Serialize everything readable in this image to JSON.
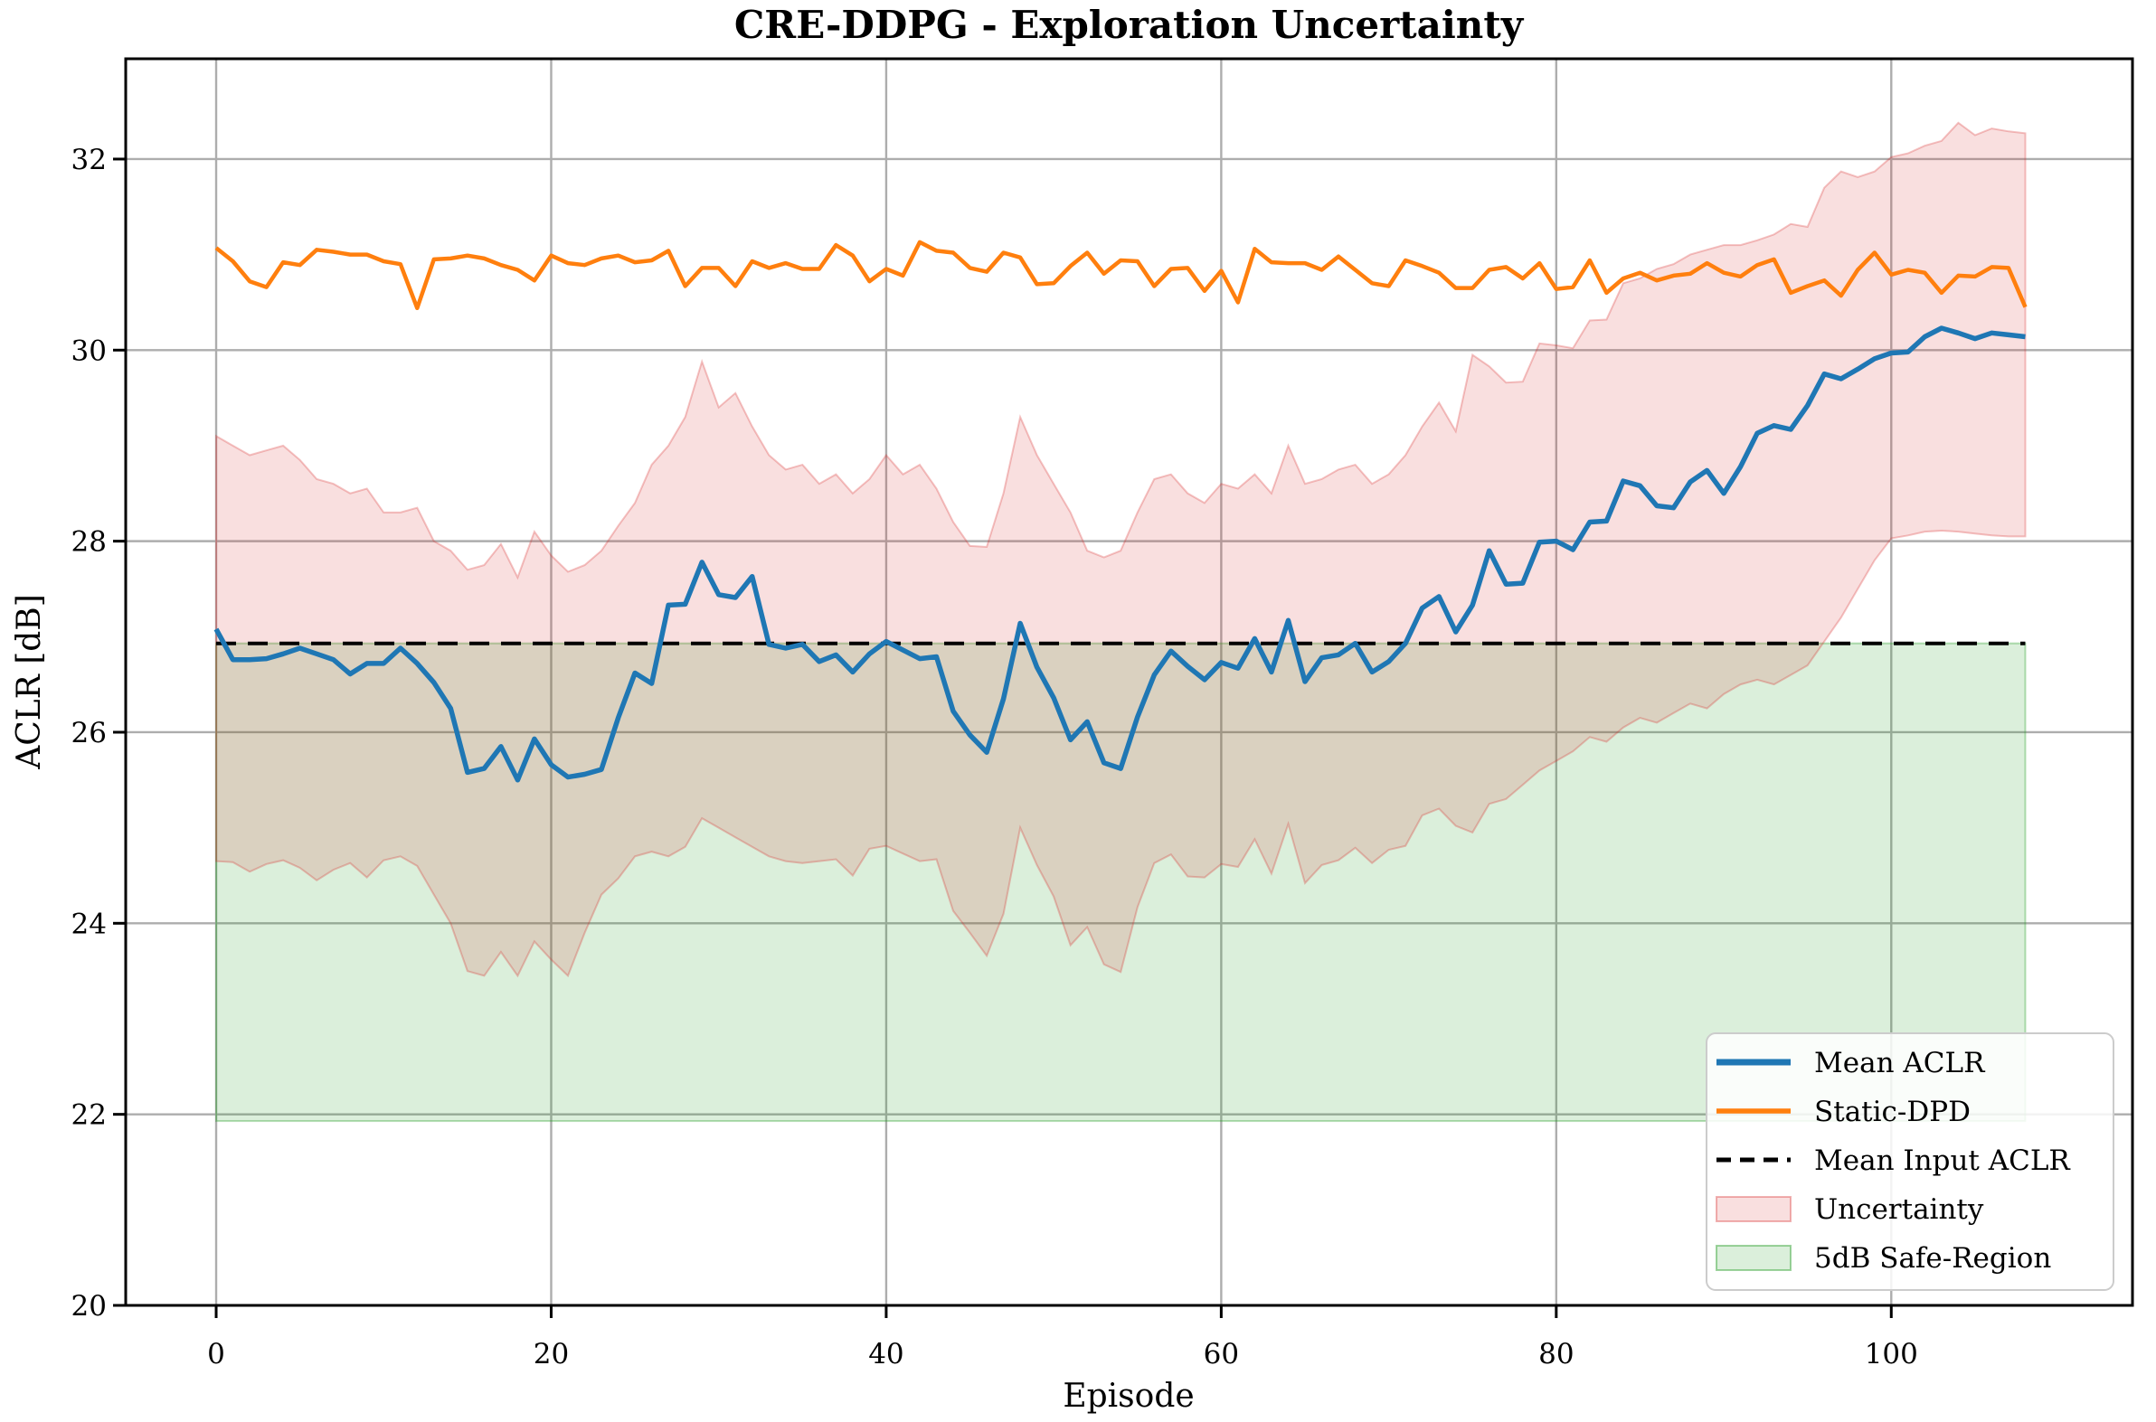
{
  "title": "CRE-DDPG - Exploration Uncertainty",
  "colors": {
    "mean_aclr": "#1f77b4",
    "static_dpd": "#ff7f0e",
    "mean_input_aclr": "#000000",
    "uncertainty_fill": "rgba(214,39,40,0.15)",
    "uncertainty_edge": "rgba(214,39,40,0.28)",
    "safe_region_fill": "rgba(44,160,44,0.17)",
    "safe_region_edge": "rgba(44,160,44,0.35)",
    "grid": "#adadad",
    "spine": "#000000",
    "legend_border": "#cccccc",
    "legend_bg": "rgba(255,255,255,0.85)"
  },
  "chart_data": {
    "type": "line",
    "title": "CRE-DDPG - Exploration Uncertainty",
    "xlabel": "Episode",
    "ylabel": "ACLR [dB]",
    "xlim": [
      -5.4,
      114.4
    ],
    "ylim": [
      20,
      33.05
    ],
    "x_ticks": [
      0,
      20,
      40,
      60,
      80,
      100
    ],
    "y_ticks": [
      20,
      22,
      24,
      26,
      28,
      30,
      32
    ],
    "grid": true,
    "legend_position": "lower right",
    "legend": [
      "Mean ACLR",
      "Static-DPD",
      "Mean Input ACLR",
      "Uncertainty",
      "5dB Safe-Region"
    ],
    "episode_start": 0,
    "n_points": 109,
    "mean_input_aclr": 26.93,
    "safe_region": {
      "y_min": 21.93,
      "y_max": 26.93,
      "x_min": 0,
      "x_max": 108
    },
    "series": [
      {
        "name": "Mean ACLR",
        "values": [
          27.08,
          26.76,
          26.76,
          26.77,
          26.82,
          26.88,
          26.82,
          26.76,
          26.61,
          26.72,
          26.72,
          26.88,
          26.72,
          26.52,
          26.25,
          25.58,
          25.62,
          25.85,
          25.5,
          25.93,
          25.66,
          25.53,
          25.56,
          25.61,
          26.15,
          26.62,
          26.51,
          27.33,
          27.34,
          27.78,
          27.44,
          27.41,
          27.63,
          26.92,
          26.88,
          26.92,
          26.74,
          26.81,
          26.63,
          26.82,
          26.95,
          26.86,
          26.77,
          26.79,
          26.22,
          25.97,
          25.79,
          26.35,
          27.14,
          26.68,
          26.36,
          25.92,
          26.11,
          25.68,
          25.62,
          26.16,
          26.6,
          26.85,
          26.69,
          26.55,
          26.73,
          26.67,
          26.98,
          26.63,
          27.17,
          26.53,
          26.78,
          26.81,
          26.93,
          26.63,
          26.74,
          26.93,
          27.3,
          27.42,
          27.05,
          27.33,
          27.9,
          27.55,
          27.56,
          27.99,
          28.0,
          27.91,
          28.2,
          28.21,
          28.63,
          28.58,
          28.37,
          28.35,
          28.62,
          28.74,
          28.5,
          28.78,
          29.13,
          29.21,
          29.17,
          29.42,
          29.75,
          29.7,
          29.8,
          29.91,
          29.97,
          29.98,
          30.14,
          30.23,
          30.18,
          30.12,
          30.18,
          30.16,
          30.14
        ]
      },
      {
        "name": "Static-DPD",
        "values": [
          31.07,
          30.93,
          30.72,
          30.66,
          30.92,
          30.89,
          31.05,
          31.03,
          31.0,
          31.0,
          30.93,
          30.9,
          30.44,
          30.95,
          30.96,
          30.99,
          30.96,
          30.89,
          30.84,
          30.73,
          30.99,
          30.91,
          30.89,
          30.96,
          30.99,
          30.92,
          30.94,
          31.04,
          30.67,
          30.86,
          30.86,
          30.67,
          30.93,
          30.86,
          30.91,
          30.85,
          30.85,
          31.1,
          30.99,
          30.72,
          30.85,
          30.78,
          31.13,
          31.04,
          31.02,
          30.86,
          30.82,
          31.02,
          30.97,
          30.69,
          30.7,
          30.88,
          31.02,
          30.8,
          30.94,
          30.93,
          30.67,
          30.85,
          30.86,
          30.62,
          30.83,
          30.5,
          31.06,
          30.92,
          30.91,
          30.91,
          30.84,
          30.98,
          30.84,
          30.7,
          30.67,
          30.94,
          30.88,
          30.81,
          30.65,
          30.65,
          30.84,
          30.87,
          30.75,
          30.91,
          30.64,
          30.66,
          30.94,
          30.6,
          30.75,
          30.81,
          30.73,
          30.78,
          30.8,
          30.91,
          30.81,
          30.77,
          30.89,
          30.95,
          30.6,
          30.67,
          30.73,
          30.57,
          30.84,
          31.02,
          30.79,
          30.84,
          30.81,
          30.6,
          30.78,
          30.77,
          30.87,
          30.86,
          30.45
        ]
      },
      {
        "name": "Uncertainty",
        "type": "band",
        "upper": [
          29.1,
          29.0,
          28.9,
          28.95,
          29.0,
          28.85,
          28.65,
          28.6,
          28.5,
          28.55,
          28.3,
          28.3,
          28.35,
          28.0,
          27.9,
          27.7,
          27.75,
          27.97,
          27.62,
          28.1,
          27.85,
          27.68,
          27.75,
          27.9,
          28.16,
          28.4,
          28.8,
          29.0,
          29.3,
          29.88,
          29.4,
          29.55,
          29.2,
          28.9,
          28.75,
          28.8,
          28.6,
          28.7,
          28.5,
          28.65,
          28.9,
          28.7,
          28.8,
          28.55,
          28.2,
          27.95,
          27.94,
          28.5,
          29.3,
          28.9,
          28.6,
          28.3,
          27.9,
          27.83,
          27.9,
          28.3,
          28.65,
          28.7,
          28.5,
          28.4,
          28.6,
          28.55,
          28.7,
          28.5,
          29.0,
          28.6,
          28.65,
          28.75,
          28.8,
          28.6,
          28.7,
          28.9,
          29.2,
          29.45,
          29.15,
          29.95,
          29.83,
          29.66,
          29.67,
          30.07,
          30.05,
          30.02,
          30.31,
          30.32,
          30.7,
          30.75,
          30.85,
          30.9,
          31.0,
          31.05,
          31.1,
          31.1,
          31.15,
          31.21,
          31.32,
          31.29,
          31.7,
          31.87,
          31.81,
          31.87,
          32.02,
          32.06,
          32.14,
          32.19,
          32.38,
          32.25,
          32.32,
          32.29,
          32.27
        ],
        "lower": [
          24.65,
          24.64,
          24.54,
          24.62,
          24.66,
          24.58,
          24.45,
          24.56,
          24.63,
          24.48,
          24.66,
          24.7,
          24.6,
          24.3,
          24.0,
          23.5,
          23.45,
          23.7,
          23.45,
          23.81,
          23.62,
          23.45,
          23.9,
          24.3,
          24.47,
          24.7,
          24.75,
          24.7,
          24.8,
          25.1,
          25.0,
          24.9,
          24.8,
          24.7,
          24.65,
          24.63,
          24.65,
          24.67,
          24.5,
          24.78,
          24.81,
          24.73,
          24.65,
          24.67,
          24.13,
          23.9,
          23.66,
          24.1,
          25.0,
          24.61,
          24.28,
          23.77,
          23.96,
          23.57,
          23.49,
          24.17,
          24.63,
          24.72,
          24.49,
          24.48,
          24.62,
          24.59,
          24.88,
          24.52,
          25.04,
          24.42,
          24.61,
          24.66,
          24.79,
          24.63,
          24.77,
          24.81,
          25.13,
          25.2,
          25.02,
          24.95,
          25.25,
          25.3,
          25.45,
          25.6,
          25.7,
          25.8,
          25.95,
          25.9,
          26.05,
          26.15,
          26.1,
          26.2,
          26.3,
          26.25,
          26.4,
          26.5,
          26.55,
          26.5,
          26.6,
          26.7,
          26.95,
          27.2,
          27.5,
          27.8,
          28.03,
          28.06,
          28.1,
          28.11,
          28.1,
          28.08,
          28.06,
          28.05,
          28.05
        ]
      }
    ]
  }
}
